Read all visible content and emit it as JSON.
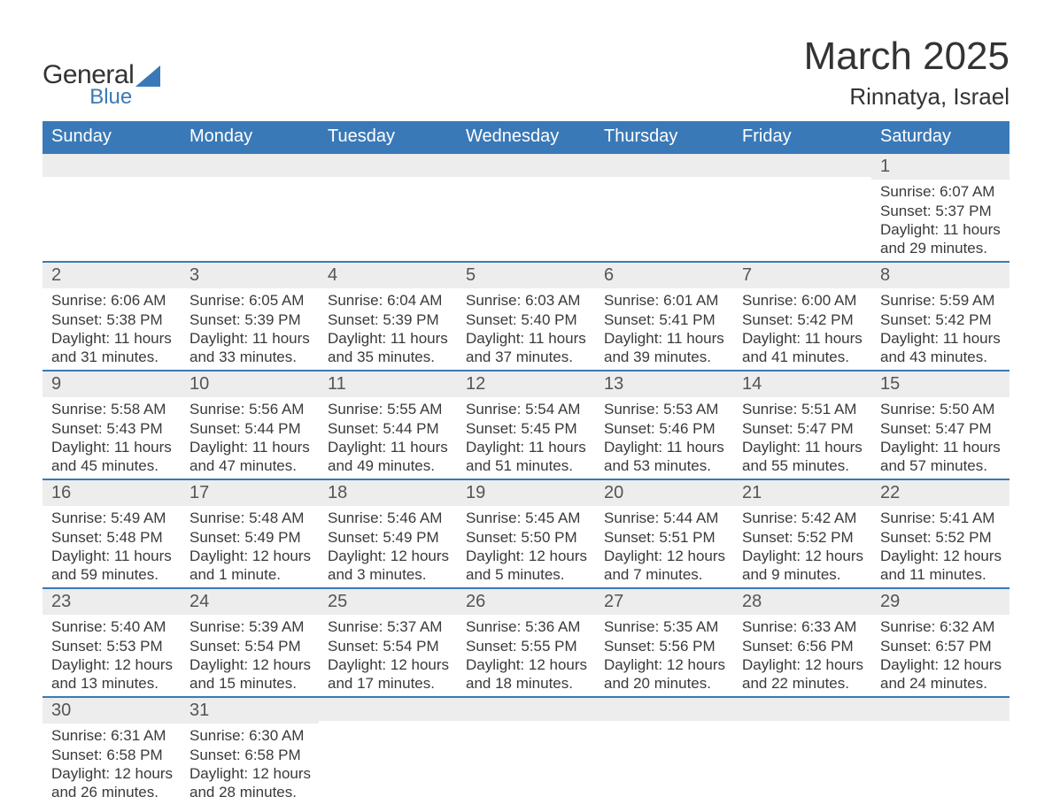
{
  "brand": {
    "general": "General",
    "blue": "Blue",
    "logo_color": "#3a79b7"
  },
  "header": {
    "month_title": "March 2025",
    "location": "Rinnatya, Israel"
  },
  "colors": {
    "header_bg": "#3a79b7",
    "header_text": "#ffffff",
    "daynum_bg": "#ededed",
    "text": "#3a3a3a",
    "rule": "#3a79b7",
    "page_bg": "#ffffff"
  },
  "weekdays": [
    "Sunday",
    "Monday",
    "Tuesday",
    "Wednesday",
    "Thursday",
    "Friday",
    "Saturday"
  ],
  "weeks": [
    [
      {},
      {},
      {},
      {},
      {},
      {},
      {
        "n": "1",
        "sunrise": "Sunrise: 6:07 AM",
        "sunset": "Sunset: 5:37 PM",
        "daylight1": "Daylight: 11 hours",
        "daylight2": "and 29 minutes."
      }
    ],
    [
      {
        "n": "2",
        "sunrise": "Sunrise: 6:06 AM",
        "sunset": "Sunset: 5:38 PM",
        "daylight1": "Daylight: 11 hours",
        "daylight2": "and 31 minutes."
      },
      {
        "n": "3",
        "sunrise": "Sunrise: 6:05 AM",
        "sunset": "Sunset: 5:39 PM",
        "daylight1": "Daylight: 11 hours",
        "daylight2": "and 33 minutes."
      },
      {
        "n": "4",
        "sunrise": "Sunrise: 6:04 AM",
        "sunset": "Sunset: 5:39 PM",
        "daylight1": "Daylight: 11 hours",
        "daylight2": "and 35 minutes."
      },
      {
        "n": "5",
        "sunrise": "Sunrise: 6:03 AM",
        "sunset": "Sunset: 5:40 PM",
        "daylight1": "Daylight: 11 hours",
        "daylight2": "and 37 minutes."
      },
      {
        "n": "6",
        "sunrise": "Sunrise: 6:01 AM",
        "sunset": "Sunset: 5:41 PM",
        "daylight1": "Daylight: 11 hours",
        "daylight2": "and 39 minutes."
      },
      {
        "n": "7",
        "sunrise": "Sunrise: 6:00 AM",
        "sunset": "Sunset: 5:42 PM",
        "daylight1": "Daylight: 11 hours",
        "daylight2": "and 41 minutes."
      },
      {
        "n": "8",
        "sunrise": "Sunrise: 5:59 AM",
        "sunset": "Sunset: 5:42 PM",
        "daylight1": "Daylight: 11 hours",
        "daylight2": "and 43 minutes."
      }
    ],
    [
      {
        "n": "9",
        "sunrise": "Sunrise: 5:58 AM",
        "sunset": "Sunset: 5:43 PM",
        "daylight1": "Daylight: 11 hours",
        "daylight2": "and 45 minutes."
      },
      {
        "n": "10",
        "sunrise": "Sunrise: 5:56 AM",
        "sunset": "Sunset: 5:44 PM",
        "daylight1": "Daylight: 11 hours",
        "daylight2": "and 47 minutes."
      },
      {
        "n": "11",
        "sunrise": "Sunrise: 5:55 AM",
        "sunset": "Sunset: 5:44 PM",
        "daylight1": "Daylight: 11 hours",
        "daylight2": "and 49 minutes."
      },
      {
        "n": "12",
        "sunrise": "Sunrise: 5:54 AM",
        "sunset": "Sunset: 5:45 PM",
        "daylight1": "Daylight: 11 hours",
        "daylight2": "and 51 minutes."
      },
      {
        "n": "13",
        "sunrise": "Sunrise: 5:53 AM",
        "sunset": "Sunset: 5:46 PM",
        "daylight1": "Daylight: 11 hours",
        "daylight2": "and 53 minutes."
      },
      {
        "n": "14",
        "sunrise": "Sunrise: 5:51 AM",
        "sunset": "Sunset: 5:47 PM",
        "daylight1": "Daylight: 11 hours",
        "daylight2": "and 55 minutes."
      },
      {
        "n": "15",
        "sunrise": "Sunrise: 5:50 AM",
        "sunset": "Sunset: 5:47 PM",
        "daylight1": "Daylight: 11 hours",
        "daylight2": "and 57 minutes."
      }
    ],
    [
      {
        "n": "16",
        "sunrise": "Sunrise: 5:49 AM",
        "sunset": "Sunset: 5:48 PM",
        "daylight1": "Daylight: 11 hours",
        "daylight2": "and 59 minutes."
      },
      {
        "n": "17",
        "sunrise": "Sunrise: 5:48 AM",
        "sunset": "Sunset: 5:49 PM",
        "daylight1": "Daylight: 12 hours",
        "daylight2": "and 1 minute."
      },
      {
        "n": "18",
        "sunrise": "Sunrise: 5:46 AM",
        "sunset": "Sunset: 5:49 PM",
        "daylight1": "Daylight: 12 hours",
        "daylight2": "and 3 minutes."
      },
      {
        "n": "19",
        "sunrise": "Sunrise: 5:45 AM",
        "sunset": "Sunset: 5:50 PM",
        "daylight1": "Daylight: 12 hours",
        "daylight2": "and 5 minutes."
      },
      {
        "n": "20",
        "sunrise": "Sunrise: 5:44 AM",
        "sunset": "Sunset: 5:51 PM",
        "daylight1": "Daylight: 12 hours",
        "daylight2": "and 7 minutes."
      },
      {
        "n": "21",
        "sunrise": "Sunrise: 5:42 AM",
        "sunset": "Sunset: 5:52 PM",
        "daylight1": "Daylight: 12 hours",
        "daylight2": "and 9 minutes."
      },
      {
        "n": "22",
        "sunrise": "Sunrise: 5:41 AM",
        "sunset": "Sunset: 5:52 PM",
        "daylight1": "Daylight: 12 hours",
        "daylight2": "and 11 minutes."
      }
    ],
    [
      {
        "n": "23",
        "sunrise": "Sunrise: 5:40 AM",
        "sunset": "Sunset: 5:53 PM",
        "daylight1": "Daylight: 12 hours",
        "daylight2": "and 13 minutes."
      },
      {
        "n": "24",
        "sunrise": "Sunrise: 5:39 AM",
        "sunset": "Sunset: 5:54 PM",
        "daylight1": "Daylight: 12 hours",
        "daylight2": "and 15 minutes."
      },
      {
        "n": "25",
        "sunrise": "Sunrise: 5:37 AM",
        "sunset": "Sunset: 5:54 PM",
        "daylight1": "Daylight: 12 hours",
        "daylight2": "and 17 minutes."
      },
      {
        "n": "26",
        "sunrise": "Sunrise: 5:36 AM",
        "sunset": "Sunset: 5:55 PM",
        "daylight1": "Daylight: 12 hours",
        "daylight2": "and 18 minutes."
      },
      {
        "n": "27",
        "sunrise": "Sunrise: 5:35 AM",
        "sunset": "Sunset: 5:56 PM",
        "daylight1": "Daylight: 12 hours",
        "daylight2": "and 20 minutes."
      },
      {
        "n": "28",
        "sunrise": "Sunrise: 6:33 AM",
        "sunset": "Sunset: 6:56 PM",
        "daylight1": "Daylight: 12 hours",
        "daylight2": "and 22 minutes."
      },
      {
        "n": "29",
        "sunrise": "Sunrise: 6:32 AM",
        "sunset": "Sunset: 6:57 PM",
        "daylight1": "Daylight: 12 hours",
        "daylight2": "and 24 minutes."
      }
    ],
    [
      {
        "n": "30",
        "sunrise": "Sunrise: 6:31 AM",
        "sunset": "Sunset: 6:58 PM",
        "daylight1": "Daylight: 12 hours",
        "daylight2": "and 26 minutes."
      },
      {
        "n": "31",
        "sunrise": "Sunrise: 6:30 AM",
        "sunset": "Sunset: 6:58 PM",
        "daylight1": "Daylight: 12 hours",
        "daylight2": "and 28 minutes."
      },
      {},
      {},
      {},
      {},
      {}
    ]
  ]
}
